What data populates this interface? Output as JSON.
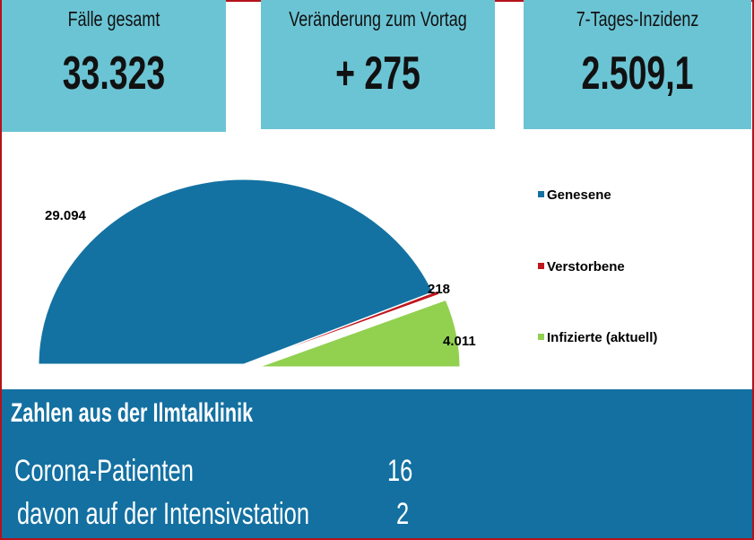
{
  "cards": [
    {
      "label": "Fälle gesamt",
      "value": "33.323"
    },
    {
      "label": "Veränderung zum Vortag",
      "value": "+ 275"
    },
    {
      "label": "7-Tages-Inzidenz",
      "value": "2.509,1"
    }
  ],
  "chart_data": {
    "type": "pie",
    "subtype": "half-pie",
    "slices": [
      {
        "name": "Genesene",
        "value": 29094,
        "label": "29.094",
        "color": "#1372a2"
      },
      {
        "name": "Verstorbene",
        "value": 218,
        "label": "218",
        "color": "#c0161e"
      },
      {
        "name": "Infizierte (aktuell)",
        "value": 4011,
        "label": "4.011",
        "color": "#92d050"
      }
    ],
    "legend_position": "right"
  },
  "panel": {
    "title": "Zahlen aus der Ilmtalklinik",
    "rows": [
      {
        "label": "Corona-Patienten",
        "value": "16"
      },
      {
        "label": "davon auf der Intensivstation",
        "value": "2"
      }
    ]
  }
}
